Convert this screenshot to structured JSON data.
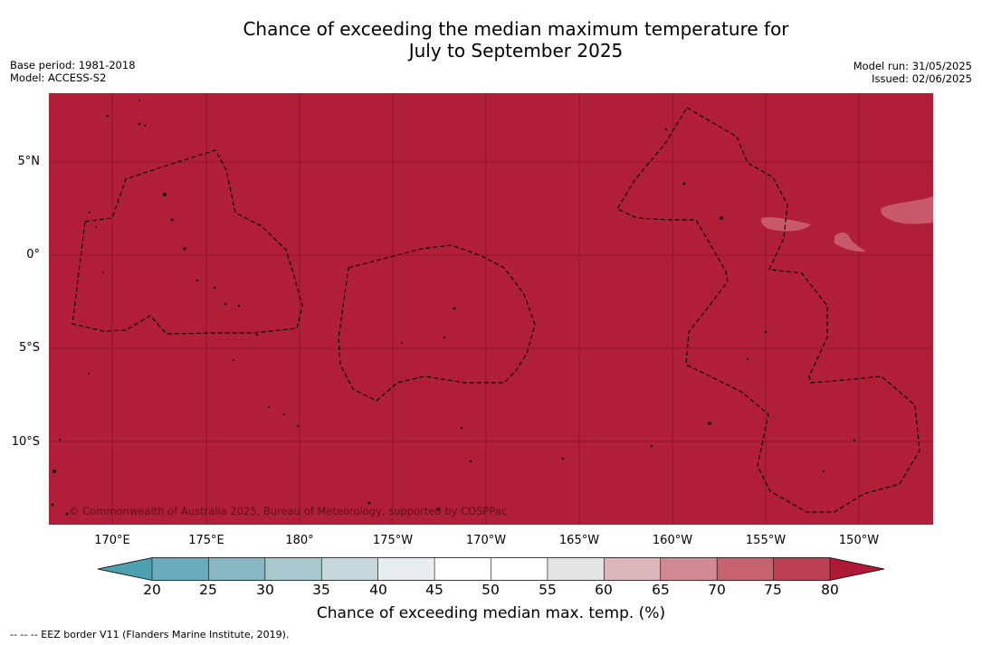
{
  "title_line1": "Chance of exceeding the median maximum temperature for",
  "title_line2": "July to September 2025",
  "base_period": "Base period: 1981-2018",
  "model": "Model: ACCESS-S2",
  "model_run": "Model run: 31/05/2025",
  "issued": "Issued: 02/06/2025",
  "copyright": "© Commonwealth of Australia 2025, Bureau of Meteorology, supported by COSPPac",
  "lat_labels": [
    "5°N",
    "0°",
    "5°S",
    "10°S"
  ],
  "lon_labels": [
    "170°E",
    "175°E",
    "180°",
    "175°W",
    "170°W",
    "165°W",
    "160°W",
    "155°W",
    "150°W"
  ],
  "colorbar": {
    "title": "Chance of exceeding median max. temp. (%)",
    "ticks": [
      "20",
      "25",
      "30",
      "35",
      "40",
      "45",
      "50",
      "55",
      "60",
      "65",
      "70",
      "75",
      "80"
    ],
    "colors": [
      "#4da0b0",
      "#6aabbd",
      "#86b7c3",
      "#a8c8cd",
      "#c6d8db",
      "#e8eef0",
      "#ffffff",
      "#ffffff",
      "#e6e3e4",
      "#ddb6bc",
      "#d18a94",
      "#c6636f",
      "#bb4152",
      "#ae1a35"
    ]
  },
  "map_colors": {
    "dominant": "#b01e37",
    "patch": "#c8596a",
    "eez_line": "#000000"
  },
  "eez_note": "-- -- -- EEZ border V11 (Flanders Marine Institute, 2019)."
}
